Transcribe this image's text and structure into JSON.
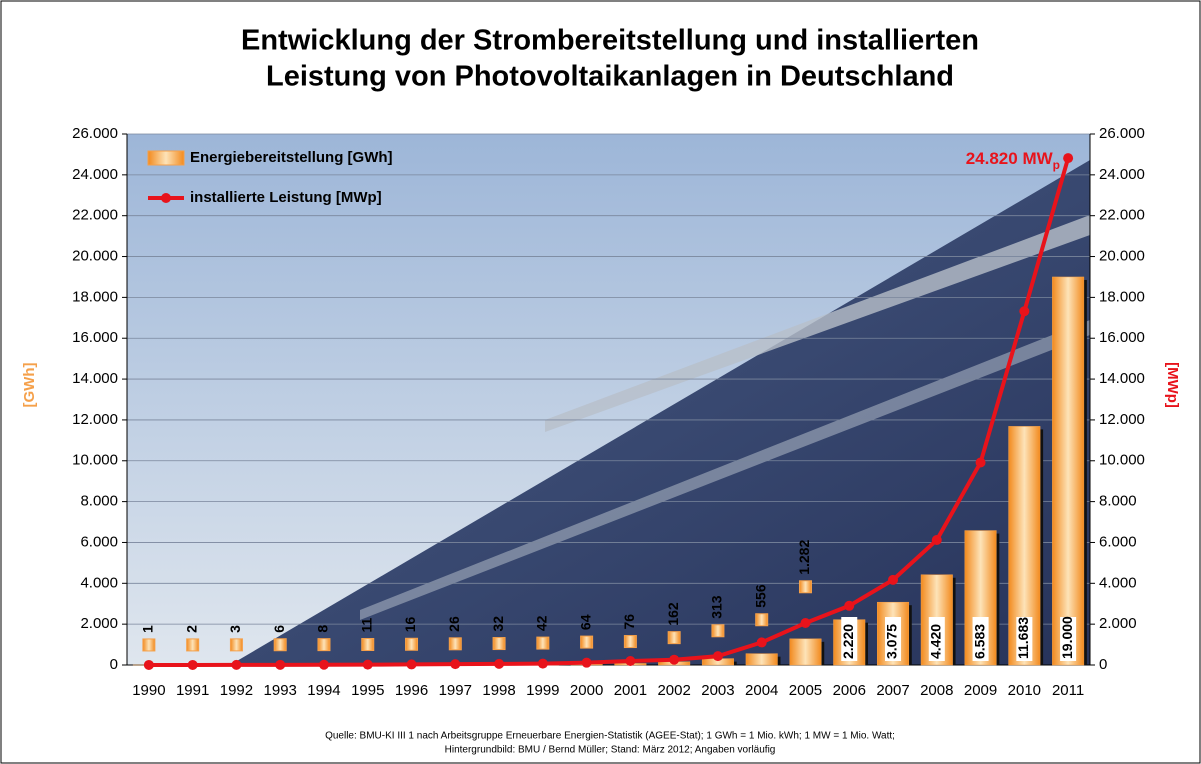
{
  "chart_data": {
    "type": "bar-line",
    "title": [
      "Entwicklung der Strombereitstellung und installierten",
      "Leistung von Photovoltaikanlagen in Deutschland"
    ],
    "categories": [
      "1990",
      "1991",
      "1992",
      "1993",
      "1994",
      "1995",
      "1996",
      "1997",
      "1998",
      "1999",
      "2000",
      "2001",
      "2002",
      "2003",
      "2004",
      "2005",
      "2006",
      "2007",
      "2008",
      "2009",
      "2010",
      "2011"
    ],
    "series": [
      {
        "name": "Energiebereitstellung [GWh]",
        "color": "#f5a04a",
        "axis": "y",
        "values": [
          1,
          2,
          3,
          6,
          8,
          11,
          16,
          26,
          32,
          42,
          64,
          76,
          162,
          313,
          556,
          1282,
          2220,
          3075,
          4420,
          6583,
          11683,
          19000
        ],
        "value_labels": [
          "1",
          "2",
          "3",
          "6",
          "8",
          "11",
          "16",
          "26",
          "32",
          "42",
          "64",
          "76",
          "162",
          "313",
          "556",
          "1.282",
          "2.220",
          "3.075",
          "4.420",
          "6.583",
          "11.683",
          "19.000"
        ]
      },
      {
        "name": "installierte Leistung [MWp]",
        "color": "#e8131b",
        "axis": "y2",
        "values": [
          2,
          3,
          6,
          9,
          12,
          18,
          28,
          42,
          54,
          70,
          114,
          195,
          260,
          435,
          1105,
          2056,
          2899,
          4170,
          6120,
          9914,
          17320,
          24820
        ]
      }
    ],
    "ylabel": "[GWh]",
    "y2label": "[MWp]",
    "ylim": [
      0,
      26000
    ],
    "y2lim": [
      0,
      26000
    ],
    "yticks": [
      0,
      {
        "value": 2000,
        "label": "2.000"
      },
      {
        "value": 4000,
        "label": "4.000"
      },
      {
        "value": 6000,
        "label": "6.000"
      },
      {
        "value": 8000,
        "label": "8.000"
      },
      {
        "value": 10000,
        "label": "10.000"
      },
      {
        "value": 12000,
        "label": "12.000"
      },
      {
        "value": 14000,
        "label": "14.000"
      },
      {
        "value": 16000,
        "label": "16.000"
      },
      {
        "value": 18000,
        "label": "18.000"
      },
      {
        "value": 20000,
        "label": "20.000"
      },
      {
        "value": 22000,
        "label": "22.000"
      },
      {
        "value": 24000,
        "label": "24.000"
      },
      {
        "value": 26000,
        "label": "26.000"
      }
    ],
    "y2ticks": [
      0,
      {
        "value": 2000,
        "label": "2.000"
      },
      {
        "value": 4000,
        "label": "4.000"
      },
      {
        "value": 6000,
        "label": "6.000"
      },
      {
        "value": 8000,
        "label": "8.000"
      },
      {
        "value": 10000,
        "label": "10.000"
      },
      {
        "value": 12000,
        "label": "12.000"
      },
      {
        "value": 14000,
        "label": "14.000"
      },
      {
        "value": 16000,
        "label": "16.000"
      },
      {
        "value": 18000,
        "label": "18.000"
      },
      {
        "value": 20000,
        "label": "20.000"
      },
      {
        "value": 22000,
        "label": "22.000"
      },
      {
        "value": 24000,
        "label": "24.000"
      },
      {
        "value": 26000,
        "label": "26.000"
      }
    ],
    "annotation": {
      "text": "24.820 MW",
      "subscript": "p"
    },
    "grid": true,
    "legend": "upper left",
    "source": [
      "Quelle: BMU-KI III 1 nach Arbeitsgruppe Erneuerbare Energien-Statistik (AGEE-Stat); 1 GWh = 1 Mio. kWh; 1 MW = 1 Mio. Watt;",
      "Hintergrundbild: BMU / Bernd Müller; Stand: März 2012; Angaben vorläufig"
    ]
  }
}
